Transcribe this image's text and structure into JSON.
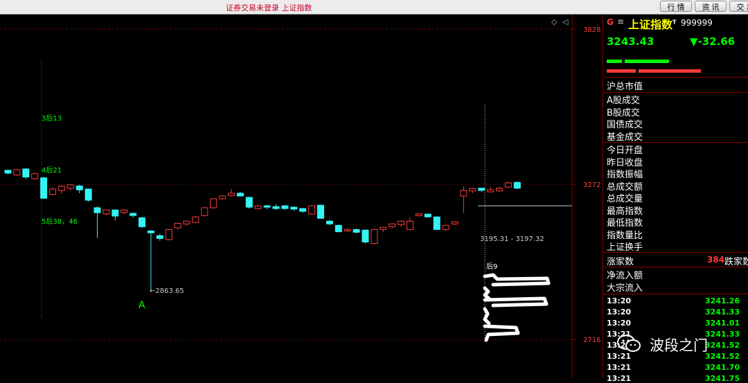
{
  "window": {
    "title": "证券交易未登录 上证指数",
    "buttons": [
      "行 情",
      "资 讯",
      "交 易"
    ]
  },
  "chart_data": {
    "type": "candlestick",
    "ylim": [
      2580,
      3880
    ],
    "y_ticks": [
      2716,
      3272,
      3828
    ],
    "candles": [
      {
        "o": 3322,
        "c": 3312,
        "h": 3325,
        "l": 3308
      },
      {
        "o": 3305,
        "c": 3324,
        "h": 3328,
        "l": 3302
      },
      {
        "o": 3327,
        "c": 3298,
        "h": 3330,
        "l": 3292
      },
      {
        "o": 3292,
        "c": 3310,
        "h": 3315,
        "l": 3288
      },
      {
        "o": 3295,
        "c": 3222,
        "h": 3298,
        "l": 3220
      },
      {
        "o": 3236,
        "c": 3255,
        "h": 3260,
        "l": 3232
      },
      {
        "o": 3250,
        "c": 3265,
        "h": 3268,
        "l": 3238
      },
      {
        "o": 3258,
        "c": 3270,
        "h": 3272,
        "l": 3250
      },
      {
        "o": 3266,
        "c": 3252,
        "h": 3270,
        "l": 3240
      },
      {
        "o": 3255,
        "c": 3215,
        "h": 3258,
        "l": 3210
      },
      {
        "o": 3188,
        "c": 3170,
        "h": 3193,
        "l": 3080
      },
      {
        "o": 3166,
        "c": 3180,
        "h": 3182,
        "l": 3160
      },
      {
        "o": 3180,
        "c": 3158,
        "h": 3182,
        "l": 3142
      },
      {
        "o": 3170,
        "c": 3180,
        "h": 3182,
        "l": 3166
      },
      {
        "o": 3168,
        "c": 3160,
        "h": 3170,
        "l": 3152
      },
      {
        "o": 3152,
        "c": 3120,
        "h": 3156,
        "l": 3116
      },
      {
        "o": 3105,
        "c": 3098,
        "h": 3108,
        "l": 2890
      },
      {
        "o": 3088,
        "c": 3078,
        "h": 3095,
        "l": 3070
      },
      {
        "o": 3074,
        "c": 3110,
        "h": 3112,
        "l": 3071
      },
      {
        "o": 3116,
        "c": 3132,
        "h": 3134,
        "l": 3110
      },
      {
        "o": 3130,
        "c": 3140,
        "h": 3142,
        "l": 3124
      },
      {
        "o": 3135,
        "c": 3155,
        "h": 3158,
        "l": 3132
      },
      {
        "o": 3160,
        "c": 3188,
        "h": 3190,
        "l": 3157
      },
      {
        "o": 3188,
        "c": 3220,
        "h": 3222,
        "l": 3185
      },
      {
        "o": 3220,
        "c": 3230,
        "h": 3233,
        "l": 3217
      },
      {
        "o": 3232,
        "c": 3240,
        "h": 3256,
        "l": 3228
      },
      {
        "o": 3240,
        "c": 3230,
        "h": 3245,
        "l": 3228
      },
      {
        "o": 3225,
        "c": 3190,
        "h": 3228,
        "l": 3185
      },
      {
        "o": 3185,
        "c": 3195,
        "h": 3198,
        "l": 3182
      },
      {
        "o": 3195,
        "c": 3190,
        "h": 3198,
        "l": 3183
      },
      {
        "o": 3192,
        "c": 3185,
        "h": 3200,
        "l": 3180
      },
      {
        "o": 3195,
        "c": 3185,
        "h": 3198,
        "l": 3180
      },
      {
        "o": 3190,
        "c": 3183,
        "h": 3194,
        "l": 3178
      },
      {
        "o": 3185,
        "c": 3175,
        "h": 3188,
        "l": 3170
      },
      {
        "o": 3165,
        "c": 3195,
        "h": 3197,
        "l": 3163
      },
      {
        "o": 3197,
        "c": 3150,
        "h": 3199,
        "l": 3150
      },
      {
        "o": 3140,
        "c": 3130,
        "h": 3144,
        "l": 3125
      },
      {
        "o": 3125,
        "c": 3102,
        "h": 3128,
        "l": 3100
      },
      {
        "o": 3105,
        "c": 3110,
        "h": 3114,
        "l": 3101
      },
      {
        "o": 3110,
        "c": 3100,
        "h": 3113,
        "l": 3097
      },
      {
        "o": 3108,
        "c": 3065,
        "h": 3110,
        "l": 3060
      },
      {
        "o": 3060,
        "c": 3110,
        "h": 3112,
        "l": 3057
      },
      {
        "o": 3110,
        "c": 3118,
        "h": 3120,
        "l": 3100
      },
      {
        "o": 3120,
        "c": 3130,
        "h": 3132,
        "l": 3115
      },
      {
        "o": 3128,
        "c": 3140,
        "h": 3142,
        "l": 3120
      },
      {
        "o": 3110,
        "c": 3140,
        "h": 3153,
        "l": 3107
      },
      {
        "o": 3160,
        "c": 3166,
        "h": 3168,
        "l": 3156
      },
      {
        "o": 3165,
        "c": 3155,
        "h": 3167,
        "l": 3153
      },
      {
        "o": 3155,
        "c": 3110,
        "h": 3157,
        "l": 3108
      },
      {
        "o": 3110,
        "c": 3125,
        "h": 3127,
        "l": 3105
      },
      {
        "o": 3130,
        "c": 3138,
        "h": 3140,
        "l": 3126
      },
      {
        "o": 3230,
        "c": 3250,
        "h": 3265,
        "l": 3170
      },
      {
        "o": 3248,
        "c": 3256,
        "h": 3259,
        "l": 3240
      },
      {
        "o": 3258,
        "c": 3250,
        "h": 3260,
        "l": 3245
      },
      {
        "o": 3245,
        "c": 3252,
        "h": 3263,
        "l": 3242
      },
      {
        "o": 3248,
        "c": 3258,
        "h": 3262,
        "l": 3246
      },
      {
        "o": 3262,
        "c": 3277,
        "h": 3282,
        "l": 3258
      },
      {
        "o": 3279,
        "c": 3258,
        "h": 3281,
        "l": 3255
      }
    ],
    "annotations": [
      "3后13",
      "4后21",
      "5后38，46",
      "←2863.65",
      "A",
      "3195.31 - 3197.32",
      "后9"
    ]
  },
  "panel": {
    "name": "上证指数",
    "sup": "T",
    "code": "999999",
    "price": "3243.43",
    "change": "▼-32.66",
    "labels1": [
      "沪总市值"
    ],
    "labels2": [
      "A股成交",
      "B股成交",
      "国债成交",
      "基金成交"
    ],
    "labels3": [
      "今日开盘",
      "昨日收盘",
      "指数振幅",
      "总成交额",
      "总成交量",
      "最高指数",
      "最低指数",
      "指数量比",
      "上证换手"
    ],
    "rise_label": "涨家数",
    "rise_value": "384",
    "fall_label": "跌家数",
    "labels4": [
      "净流入额",
      "大宗流入"
    ],
    "ticks": [
      {
        "time": "13:20",
        "value": "3241.26"
      },
      {
        "time": "13:20",
        "value": "3241.33"
      },
      {
        "time": "13:20",
        "value": "3241.01"
      },
      {
        "time": "13:21",
        "value": "3241.33"
      },
      {
        "time": "13:21",
        "value": "3241.52"
      },
      {
        "time": "13:21",
        "value": "3241.52"
      },
      {
        "time": "13:21",
        "value": "3241.70"
      },
      {
        "time": "13:21",
        "value": "3241.75"
      }
    ]
  },
  "watermark": "波段之门",
  "colors": {
    "up": "#ff3b3b",
    "down": "#33f3f3",
    "axis": "#8b0000",
    "grid": "#8b0000",
    "label_green": "#00ff00",
    "index_yellow": "#ffff00"
  }
}
